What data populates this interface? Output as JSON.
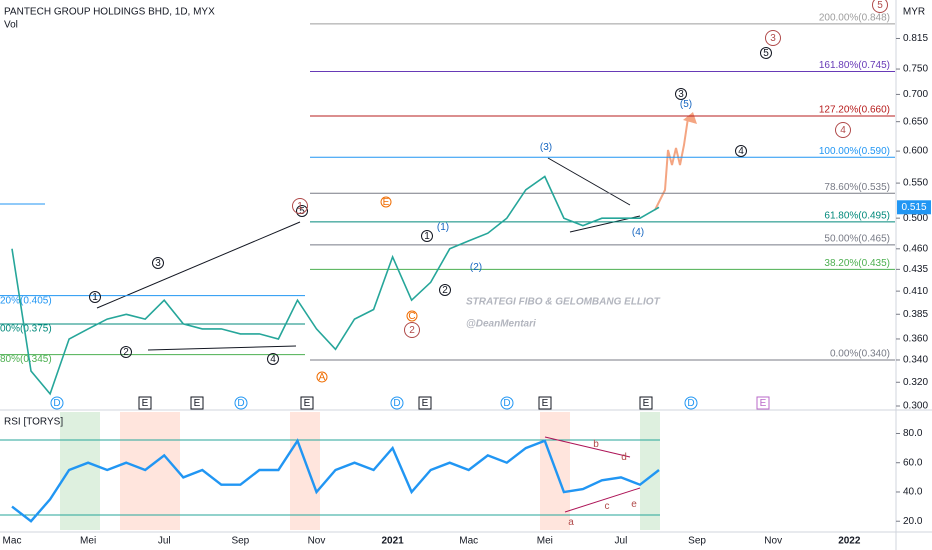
{
  "header": {
    "title": "PANTECH GROUP HOLDINGS BHD, 1D, MYX",
    "volume_label": "Vol",
    "currency": "MYR"
  },
  "watermark": {
    "line1": "STRATEGI FIBO & GELOMBANG ELLIOT",
    "line2": "@DeanMentari"
  },
  "chart_data": [
    {
      "type": "line",
      "color": "#26a69a",
      "log_scale": true,
      "grid": false,
      "values": [
        0.46,
        0.33,
        0.31,
        0.36,
        0.37,
        0.38,
        0.385,
        0.38,
        0.4,
        0.375,
        0.37,
        0.37,
        0.365,
        0.365,
        0.36,
        0.4,
        0.37,
        0.35,
        0.38,
        0.39,
        0.45,
        0.4,
        0.42,
        0.46,
        0.47,
        0.48,
        0.5,
        0.54,
        0.56,
        0.5,
        0.49,
        0.5,
        0.5,
        0.5,
        0.515,
        null,
        null,
        null,
        null,
        null,
        null,
        null,
        null,
        null,
        null
      ],
      "ylim": [
        0.3,
        0.9
      ],
      "yticks": [
        {
          "value": 0.3,
          "label": "0.300"
        },
        {
          "value": 0.32,
          "label": "0.320"
        },
        {
          "value": 0.34,
          "label": "0.340"
        },
        {
          "value": 0.36,
          "label": "0.360"
        },
        {
          "value": 0.385,
          "label": "0.385"
        },
        {
          "value": 0.41,
          "label": "0.410"
        },
        {
          "value": 0.435,
          "label": "0.435"
        },
        {
          "value": 0.46,
          "label": "0.460"
        },
        {
          "value": 0.5,
          "label": "0.500"
        },
        {
          "value": 0.55,
          "label": "0.550"
        },
        {
          "value": 0.6,
          "label": "0.600"
        },
        {
          "value": 0.65,
          "label": "0.650"
        },
        {
          "value": 0.7,
          "label": "0.700"
        },
        {
          "value": 0.75,
          "label": "0.750"
        },
        {
          "value": 0.815,
          "label": "0.815"
        }
      ],
      "price_tag": {
        "value": 0.515,
        "label": "0.515"
      },
      "fib_levels": [
        {
          "label": "200.00%(0.848)",
          "value": 0.848,
          "color": "#9e9e9e"
        },
        {
          "label": "161.80%(0.745)",
          "value": 0.745,
          "color": "#673ab7"
        },
        {
          "label": "127.20%(0.660)",
          "value": 0.66,
          "color": "#b71c1c"
        },
        {
          "label": "100.00%(0.590)",
          "value": 0.59,
          "color": "#2196f3"
        },
        {
          "label": "78.60%(0.535)",
          "value": 0.535,
          "color": "#787b86"
        },
        {
          "label": "61.80%(0.495)",
          "value": 0.495,
          "color": "#00897b"
        },
        {
          "label": "50.00%(0.465)",
          "value": 0.465,
          "color": "#787b86"
        },
        {
          "label": "38.20%(0.435)",
          "value": 0.435,
          "color": "#4caf50"
        },
        {
          "label": "0.00%(0.340)",
          "value": 0.34,
          "color": "#787b86"
        }
      ],
      "old_fib_levels": [
        {
          "label": "20%(0.405)",
          "value": 0.405,
          "color": "#2196f3"
        },
        {
          "label": "00%(0.375)",
          "value": 0.375,
          "color": "#00897b"
        },
        {
          "label": "80%(0.345)",
          "value": 0.345,
          "color": "#4caf50"
        }
      ]
    },
    {
      "type": "line",
      "title": "RSI [TORYS]",
      "color": "#2196f3",
      "categories": [
        "Mac",
        null,
        null,
        null,
        "Mei",
        null,
        null,
        null,
        "Jul",
        null,
        null,
        null,
        "Sep",
        null,
        null,
        null,
        "Nov",
        null,
        null,
        null,
        "2021",
        null,
        null,
        null,
        "Mac",
        null,
        null,
        null,
        "Mei",
        null,
        null,
        null,
        "Jul",
        null,
        null,
        null,
        "Sep",
        null,
        null,
        null,
        "Nov",
        null,
        null,
        null,
        "2022"
      ],
      "values": [
        30,
        20,
        35,
        55,
        60,
        55,
        60,
        55,
        65,
        50,
        55,
        45,
        45,
        55,
        55,
        75,
        40,
        55,
        60,
        55,
        70,
        40,
        55,
        60,
        55,
        65,
        60,
        70,
        75,
        40,
        42,
        48,
        50,
        45,
        55,
        null,
        null,
        null,
        null,
        null,
        null,
        null,
        null,
        null,
        null
      ],
      "ylim": [
        14,
        94
      ],
      "yticks": [
        {
          "value": 20,
          "label": "20.0"
        },
        {
          "value": 40,
          "label": "40.0"
        },
        {
          "value": 60,
          "label": "60.0"
        },
        {
          "value": 80,
          "label": "80.0"
        }
      ]
    }
  ],
  "annotations": [
    {
      "text": "1",
      "style": "small"
    },
    {
      "text": "2",
      "style": "small"
    },
    {
      "text": "3",
      "style": "small"
    },
    {
      "text": "4",
      "style": "small"
    },
    {
      "text": "5",
      "style": "small"
    },
    {
      "text": "1",
      "style": "big"
    },
    {
      "text": "E",
      "style": "orange"
    },
    {
      "text": "1",
      "style": "small"
    },
    {
      "text": "2",
      "style": "big"
    },
    {
      "text": "C",
      "style": "orange"
    },
    {
      "text": "A",
      "style": "orange"
    },
    {
      "text": "2",
      "style": "small"
    },
    {
      "text": "(1)",
      "style": "blue"
    },
    {
      "text": "(2)",
      "style": "blue"
    },
    {
      "text": "(3)",
      "style": "blue"
    },
    {
      "text": "(4)",
      "style": "blue"
    },
    {
      "text": "3",
      "style": "small"
    },
    {
      "text": "(5)",
      "style": "blue"
    },
    {
      "text": "4",
      "style": "small"
    },
    {
      "text": "4",
      "style": "big"
    },
    {
      "text": "3",
      "style": "big"
    },
    {
      "text": "5",
      "style": "small"
    },
    {
      "text": "5",
      "style": "big"
    },
    {
      "text": "a",
      "style": "red"
    },
    {
      "text": "b",
      "style": "red"
    },
    {
      "text": "c",
      "style": "red"
    },
    {
      "text": "d",
      "style": "red"
    },
    {
      "text": "e",
      "style": "red"
    }
  ],
  "events": [
    "D",
    "E",
    "E",
    "D",
    "E",
    "D",
    "E",
    "D",
    "E",
    "E",
    "D",
    "E"
  ]
}
